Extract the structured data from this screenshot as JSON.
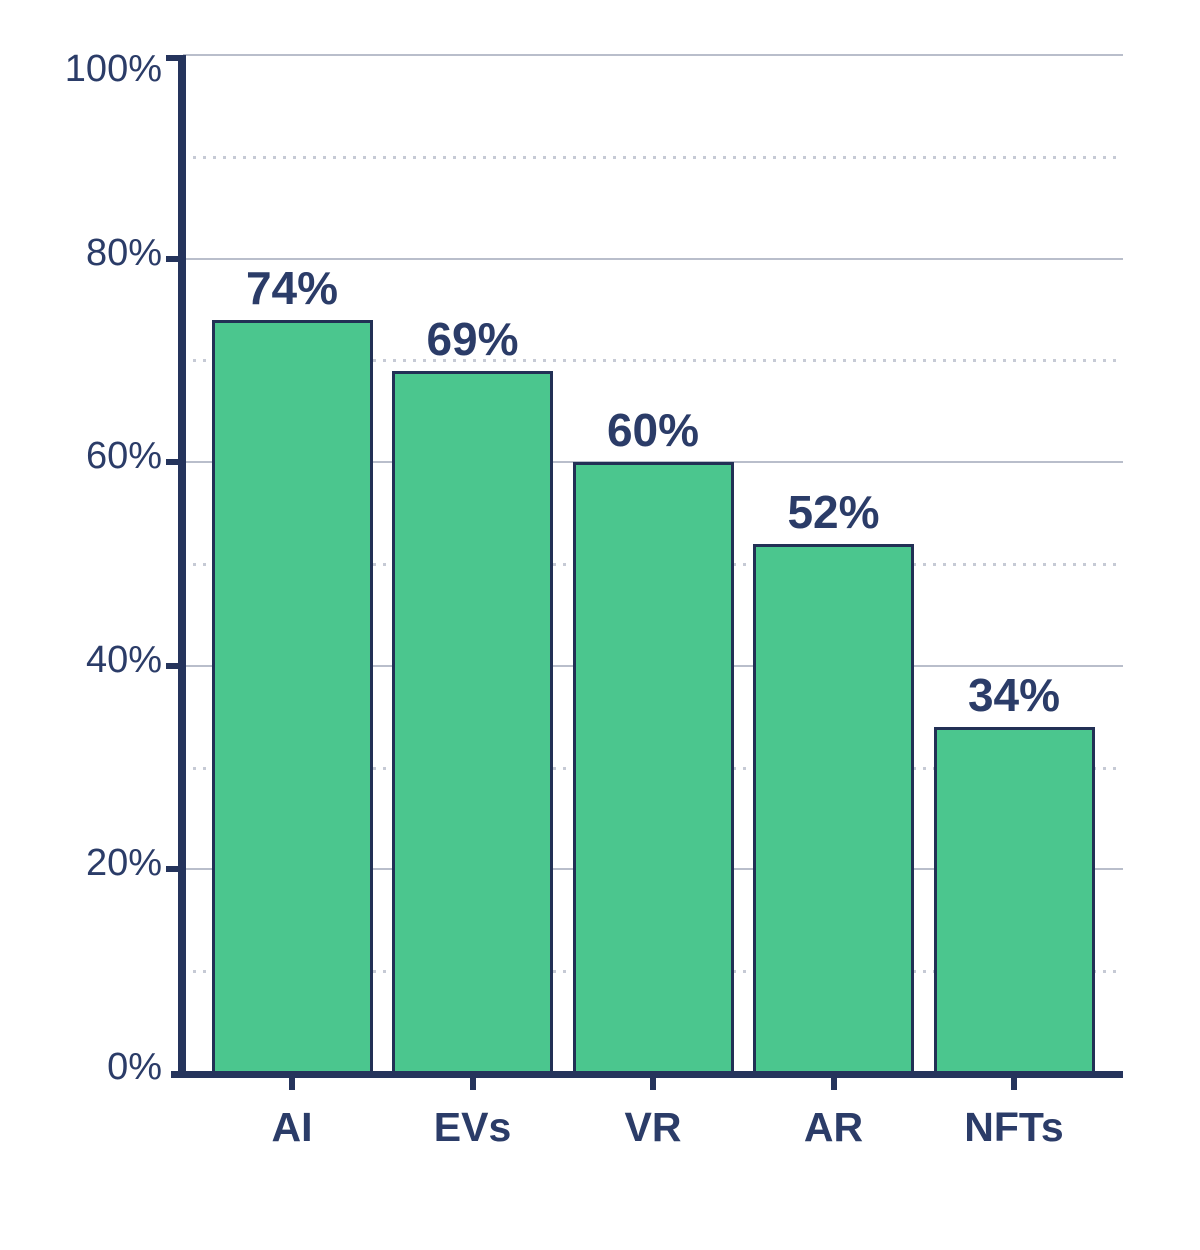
{
  "chart_data": {
    "type": "bar",
    "categories": [
      "AI",
      "EVs",
      "VR",
      "AR",
      "NFTs"
    ],
    "values": [
      74,
      69,
      60,
      52,
      34
    ],
    "bar_value_labels": [
      "74%",
      "69%",
      "60%",
      "52%",
      "34%"
    ],
    "y_axis": {
      "range": [
        0,
        100
      ],
      "tick_values": [
        0,
        20,
        40,
        60,
        80,
        100
      ],
      "tick_labels": [
        "0%",
        "20%",
        "40%",
        "60%",
        "80%",
        "100%"
      ],
      "major_gridline_values": [
        20,
        40,
        60,
        80,
        100
      ],
      "major_gridline_style": "solid",
      "minor_gridline_values": [
        10,
        30,
        50,
        70,
        90
      ],
      "minor_gridline_style": "dotted"
    },
    "legend": "none",
    "grid": "on",
    "colors": {
      "bar_fill": "#4BC68E",
      "bar_border": "#223055",
      "axis": "#25345C",
      "text": "#2B3C68",
      "gridline_major": "#B9BECB",
      "gridline_minor": "#C6CAD5",
      "background": "#FFFFFF"
    }
  }
}
